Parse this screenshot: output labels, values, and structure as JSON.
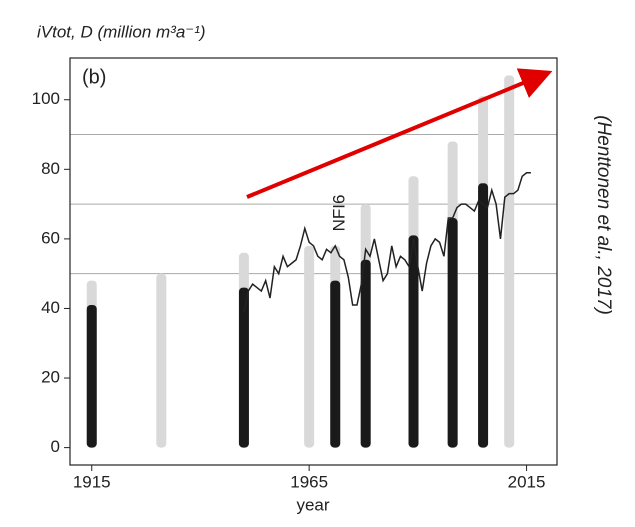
{
  "chart_data": {
    "type": "bar",
    "title": "iVtot, D (million m³a⁻¹)",
    "panel_label": "(b)",
    "xlabel": "year",
    "annotation": "NFI6",
    "source": "(Henttonen et al., 2017)",
    "xlim": [
      1910,
      2022
    ],
    "ylim": [
      -5,
      112
    ],
    "xticks": [
      1915,
      1965,
      2015
    ],
    "yticks": [
      0,
      20,
      40,
      60,
      80,
      100
    ],
    "hlines": [
      50,
      70,
      90
    ],
    "series": [
      {
        "color": "#d9d9d9",
        "x": [
          1915,
          1931,
          1950,
          1965,
          1971,
          1978,
          1989,
          1998,
          2005,
          2011
        ],
        "values": [
          48,
          50,
          56,
          58,
          58,
          70,
          78,
          88,
          101,
          107
        ]
      },
      {
        "color": "#1a1a1a",
        "x": [
          1915,
          1950,
          1971,
          1978,
          1989,
          1998,
          2005
        ],
        "values": [
          41,
          46,
          48,
          54,
          61,
          66,
          76
        ]
      }
    ],
    "line": {
      "color": "#222222",
      "x": [
        1950,
        1951,
        1952,
        1953,
        1954,
        1955,
        1956,
        1957,
        1958,
        1959,
        1960,
        1961,
        1962,
        1963,
        1964,
        1965,
        1966,
        1967,
        1968,
        1969,
        1970,
        1971,
        1972,
        1973,
        1974,
        1975,
        1976,
        1977,
        1978,
        1979,
        1980,
        1981,
        1982,
        1983,
        1984,
        1985,
        1986,
        1987,
        1988,
        1989,
        1990,
        1991,
        1992,
        1993,
        1994,
        1995,
        1996,
        1997,
        1998,
        1999,
        2000,
        2001,
        2002,
        2003,
        2004,
        2005,
        2006,
        2007,
        2008,
        2009,
        2010,
        2011,
        2012,
        2013,
        2014,
        2015,
        2016
      ],
      "values": [
        39,
        45,
        47,
        46,
        45,
        48,
        43,
        52,
        50,
        55,
        52,
        53,
        54,
        58,
        63,
        59,
        58,
        55,
        54,
        57,
        56,
        58,
        55,
        54,
        49,
        41,
        41,
        47,
        57,
        55,
        60,
        54,
        48,
        50,
        58,
        52,
        55,
        54,
        52,
        60,
        52,
        45,
        53,
        58,
        60,
        59,
        55,
        66,
        66,
        69,
        70,
        70,
        69,
        68,
        71,
        70,
        69,
        74,
        70,
        60,
        72,
        73,
        73,
        74,
        78,
        79,
        79
      ]
    }
  }
}
